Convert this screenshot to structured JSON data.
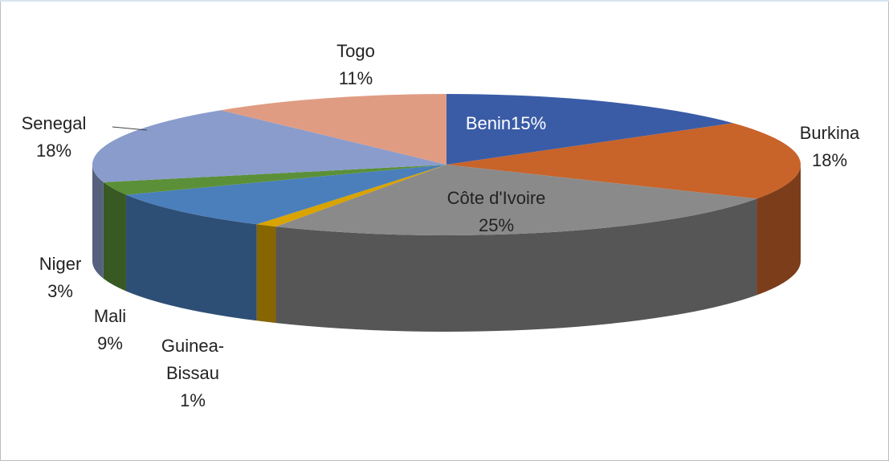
{
  "chart_data": {
    "type": "pie3d",
    "categories": [
      "Benin",
      "Burkina",
      "Côte d'Ivoire",
      "Guinea-Bissau",
      "Mali",
      "Niger",
      "Senegal",
      "Togo"
    ],
    "values": [
      15,
      18,
      25,
      1,
      9,
      3,
      18,
      11
    ],
    "value_labels": [
      "15%",
      "18%",
      "25%",
      "1%",
      "9%",
      "3%",
      "18%",
      "11%"
    ],
    "colors": [
      "#3a5ca6",
      "#c8632a",
      "#8a8a8a",
      "#d9a300",
      "#4a7fbc",
      "#5b9038",
      "#8a9ccc",
      "#e09c82"
    ]
  }
}
